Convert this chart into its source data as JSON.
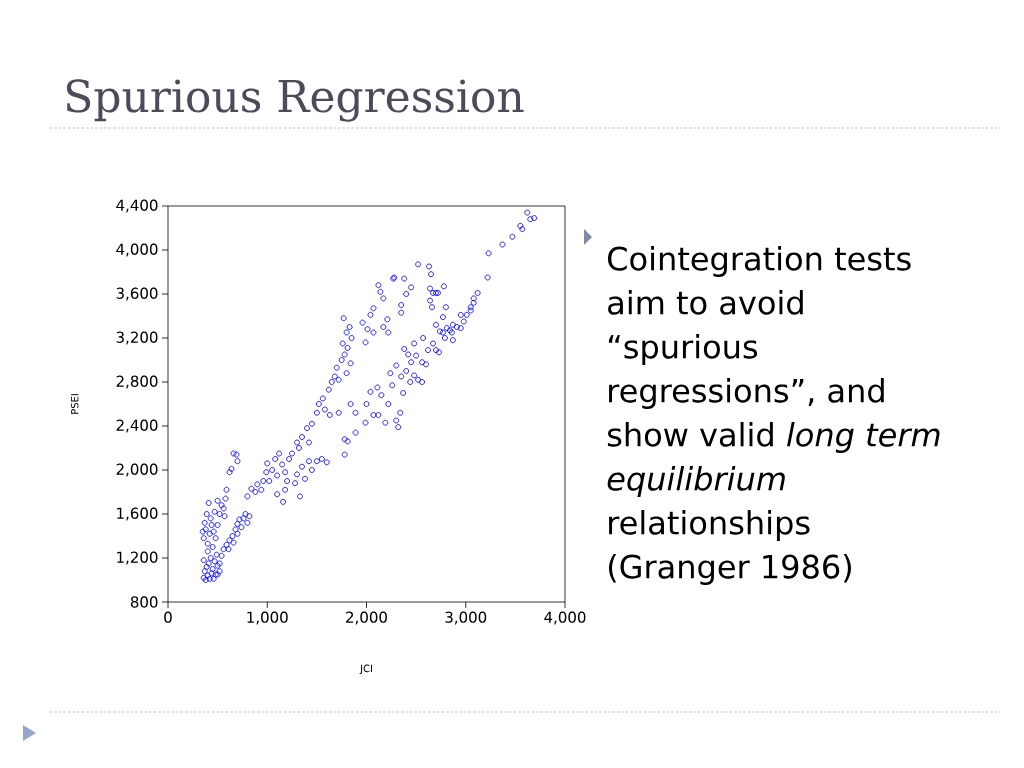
{
  "chart_data": {
    "type": "scatter",
    "title": "Spurious Regression",
    "xlabel": "JCI",
    "ylabel": "PSEI",
    "annotations": [
      "Cointegration tests aim to avoid “spurious regressions”, and show valid *long term equilibrium* relationships (Granger 1986)"
    ],
    "color": "#0000ff",
    "marker": "circle",
    "xlim": [
      0,
      4000
    ],
    "ylim": [
      800,
      4400
    ],
    "xticks": [
      {
        "value": 0,
        "label": "0"
      },
      {
        "value": 1000,
        "label": "1,000"
      },
      {
        "value": 2000,
        "label": "2,000"
      },
      {
        "value": 3000,
        "label": "3,000"
      },
      {
        "value": 4000,
        "label": "4,000"
      }
    ],
    "yticks": [
      {
        "value": 800,
        "label": "800"
      },
      {
        "value": 1200,
        "label": "1,200"
      },
      {
        "value": 1600,
        "label": "1,600"
      },
      {
        "value": 2000,
        "label": "2,000"
      },
      {
        "value": 2400,
        "label": "2,400"
      },
      {
        "value": 2800,
        "label": "2,800"
      },
      {
        "value": 3200,
        "label": "3,200"
      },
      {
        "value": 3600,
        "label": "3,600"
      },
      {
        "value": 4000,
        "label": "4,000"
      },
      {
        "value": 4400,
        "label": "4,400"
      }
    ],
    "x": [
      360,
      380,
      400,
      370,
      420,
      440,
      390,
      410,
      450,
      480,
      430,
      470,
      500,
      360,
      460,
      520,
      490,
      400,
      350,
      360,
      380,
      400,
      420,
      440,
      370,
      390,
      410,
      430,
      460,
      480,
      500,
      520,
      540,
      450,
      470,
      500,
      560,
      580,
      590,
      570,
      500,
      520,
      540,
      560,
      590,
      620,
      650,
      680,
      700,
      720,
      740,
      760,
      780,
      800,
      820,
      700,
      660,
      610,
      620,
      640,
      660,
      690,
      700,
      800,
      840,
      880,
      900,
      940,
      960,
      990,
      1000,
      1020,
      1050,
      1080,
      1100,
      1120,
      1150,
      1180,
      1200,
      1220,
      1250,
      1100,
      1160,
      1180,
      1280,
      1300,
      1330,
      1350,
      1320,
      1380,
      1420,
      1450,
      1500,
      1550,
      1600,
      1780,
      1300,
      1350,
      1400,
      1420,
      1450,
      1500,
      1520,
      1560,
      1580,
      1620,
      1650,
      1680,
      1700,
      1720,
      1750,
      1780,
      1760,
      1800,
      1830,
      1850,
      1770,
      1810,
      1840,
      1800,
      1630,
      1720,
      1780,
      1810,
      1840,
      1890,
      1890,
      1960,
      1990,
      2010,
      2040,
      2070,
      2070,
      2120,
      2140,
      2170,
      2170,
      2210,
      2220,
      2270,
      2280,
      2350,
      2350,
      2380,
      2400,
      2450,
      2520,
      2630,
      2650,
      2640,
      2670,
      2700,
      2720,
      2780,
      2640,
      2660,
      2800,
      1990,
      2000,
      2040,
      2070,
      2110,
      2120,
      2150,
      2190,
      2220,
      2260,
      2300,
      2320,
      2340,
      2370,
      2240,
      2300,
      2350,
      2400,
      2450,
      2480,
      2520,
      2560,
      2440,
      2500,
      2480,
      2570,
      2620,
      2560,
      2600,
      2670,
      2700,
      2730,
      2420,
      2380,
      2740,
      2770,
      2770,
      2700,
      2790,
      2810,
      2840,
      2860,
      2870,
      2870,
      2910,
      2950,
      2950,
      2980,
      3010,
      3050,
      3050,
      3080,
      3080,
      3120,
      3220,
      3230,
      3370,
      3470,
      3550,
      3570,
      3620,
      3650,
      3690
    ],
    "values": [
      1020,
      1000,
      1040,
      1080,
      1010,
      1060,
      1120,
      1150,
      1100,
      1050,
      1200,
      1170,
      1130,
      1180,
      1010,
      1080,
      1230,
      1260,
      1440,
      1380,
      1460,
      1330,
      1420,
      1500,
      1520,
      1600,
      1700,
      1560,
      1440,
      1380,
      1500,
      1600,
      1680,
      1300,
      1620,
      1720,
      1650,
      1740,
      1820,
      1580,
      1050,
      1150,
      1220,
      1280,
      1320,
      1360,
      1400,
      1460,
      1510,
      1550,
      1480,
      1560,
      1600,
      1520,
      1580,
      1420,
      1340,
      1280,
      1980,
      2010,
      2150,
      2140,
      2080,
      1760,
      1830,
      1800,
      1870,
      1820,
      1900,
      1980,
      2060,
      1900,
      2000,
      2100,
      1950,
      2150,
      2050,
      1980,
      1900,
      2100,
      2150,
      1780,
      1710,
      1820,
      1880,
      1960,
      1760,
      2030,
      2200,
      1920,
      2080,
      2000,
      2080,
      2100,
      2070,
      2140,
      2250,
      2300,
      2380,
      2250,
      2420,
      2520,
      2600,
      2650,
      2550,
      2730,
      2800,
      2850,
      2930,
      2820,
      3000,
      3050,
      3150,
      3250,
      3300,
      3200,
      3380,
      3110,
      2970,
      2880,
      2500,
      2520,
      2280,
      2260,
      2600,
      2340,
      2520,
      3340,
      3160,
      3280,
      3410,
      3470,
      3250,
      3680,
      3620,
      3560,
      3300,
      3370,
      3250,
      3740,
      3750,
      3500,
      3430,
      3740,
      3600,
      3660,
      3870,
      3850,
      3780,
      3650,
      3610,
      3610,
      3610,
      3670,
      3540,
      3480,
      3480,
      2430,
      2600,
      2710,
      2500,
      2750,
      2500,
      2680,
      2430,
      2600,
      2770,
      2450,
      2390,
      2520,
      2700,
      2880,
      2950,
      2850,
      2900,
      2980,
      2860,
      2820,
      2800,
      2800,
      3040,
      3150,
      3200,
      3090,
      2980,
      2960,
      3150,
      3090,
      3070,
      3050,
      3100,
      3260,
      3250,
      3390,
      3320,
      3200,
      3290,
      3270,
      3250,
      3180,
      3320,
      3300,
      3290,
      3410,
      3350,
      3410,
      3480,
      3450,
      3560,
      3520,
      3610,
      3750,
      3970,
      4050,
      4120,
      4220,
      4190,
      4340,
      4280,
      4290
    ]
  }
}
